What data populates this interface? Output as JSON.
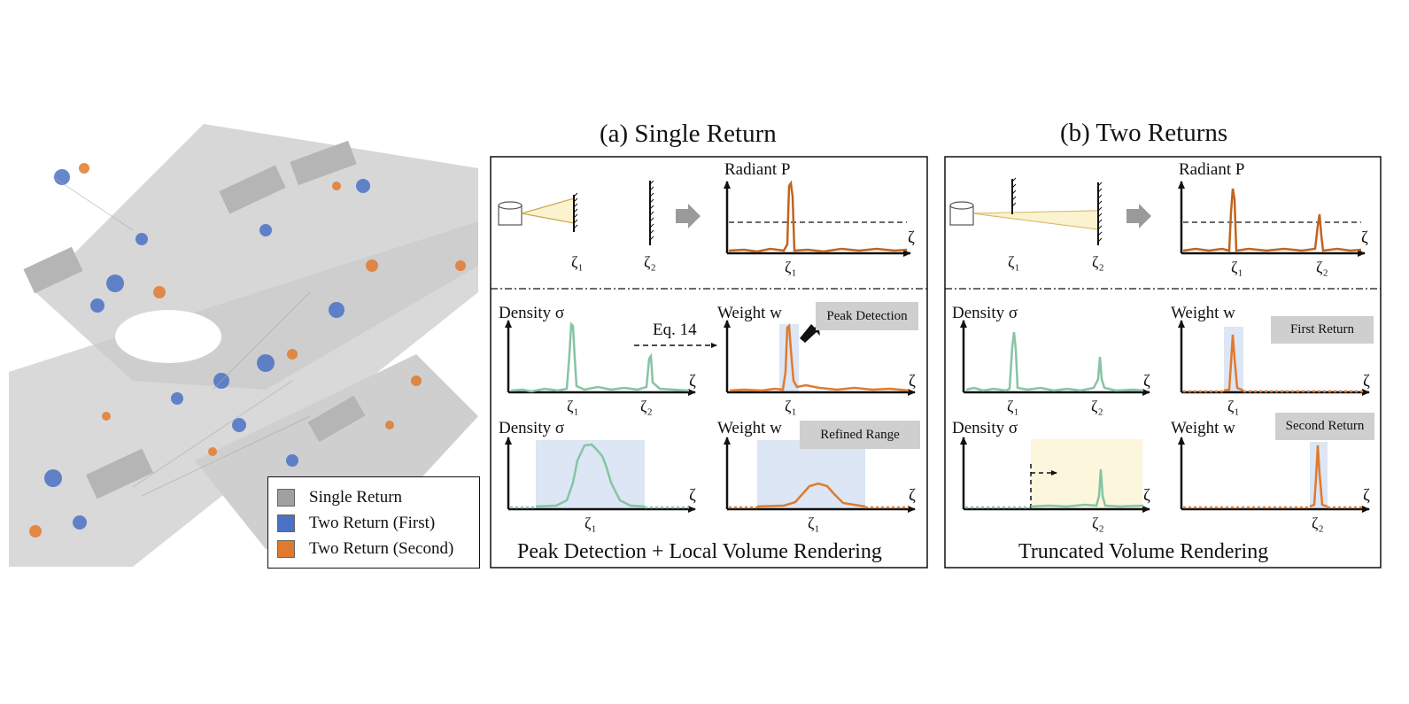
{
  "panel_a": {
    "title": "(a) Single Return",
    "caption": "Peak Detection + Local Volume Rendering",
    "radiant_label": "Radiant P",
    "density_label_top": "Density σ",
    "weight_label_top": "Weight w",
    "density_label_bottom": "Density σ",
    "weight_label_bottom": "Weight w",
    "eq_label": "Eq. 14",
    "tag_peak": "Peak Detection",
    "tag_refined": "Refined Range"
  },
  "panel_b": {
    "title": "(b) Two Returns",
    "caption": "Truncated Volume Rendering",
    "radiant_label": "Radiant P",
    "density_label_top": "Density σ",
    "weight_label_top": "Weight w",
    "density_label_bottom": "Density σ",
    "weight_label_bottom": "Weight w",
    "tag_first": "First Return",
    "tag_second": "Second Return"
  },
  "symbols": {
    "zeta": "ζ",
    "zeta1": "ζ₁",
    "zeta2": "ζ₂"
  },
  "legend": [
    {
      "label": "Single Return",
      "color": "#a0a0a0"
    },
    {
      "label": "Two Return (First)",
      "color": "#4a72c4"
    },
    {
      "label": "Two Return (Second)",
      "color": "#e07a2e"
    }
  ],
  "colors": {
    "density_curve": "#86c4a4",
    "weight_curve": "#e07a2e",
    "radiant_curve": "#c06420",
    "highlight_blue": "#dce6f4",
    "highlight_yellow": "#fbf6dc"
  }
}
